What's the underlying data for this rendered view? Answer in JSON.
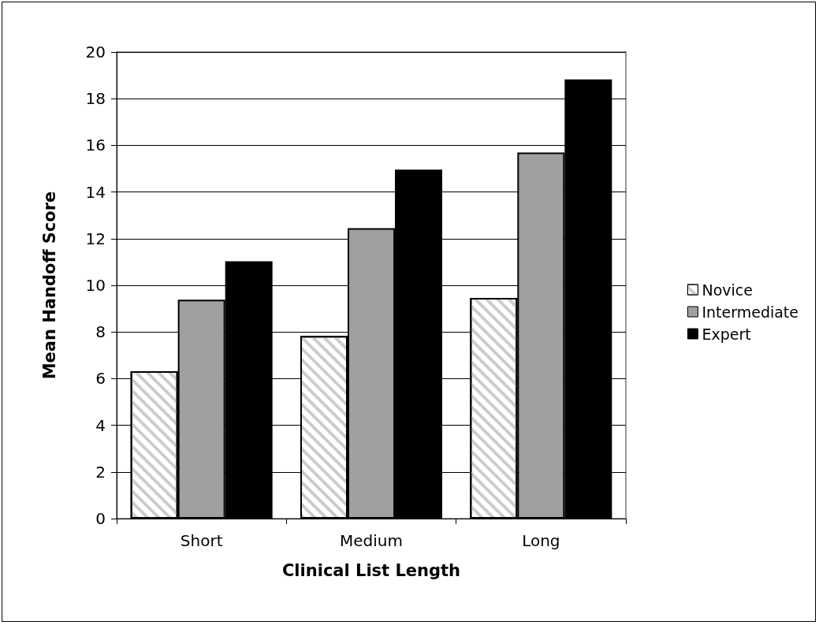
{
  "chart_data": {
    "type": "bar",
    "categories": [
      "Short",
      "Medium",
      "Long"
    ],
    "xlabel": "Clinical List Length",
    "ylabel": "Mean Handoff Score",
    "series": [
      {
        "name": "Novice",
        "color": "#ffffff",
        "values": [
          6.32,
          7.83,
          9.46
        ]
      },
      {
        "name": "Intermediate",
        "color": "#a0a0a0",
        "values": [
          9.38,
          12.45,
          15.69
        ]
      },
      {
        "name": "Expert",
        "color": "#000000",
        "values": [
          11.03,
          14.96,
          18.83
        ]
      }
    ],
    "ylim": [
      0,
      20
    ],
    "yticks": [
      0,
      2,
      4,
      6,
      8,
      10,
      12,
      14,
      16,
      18,
      20
    ],
    "grid": "y",
    "legend": "right"
  }
}
